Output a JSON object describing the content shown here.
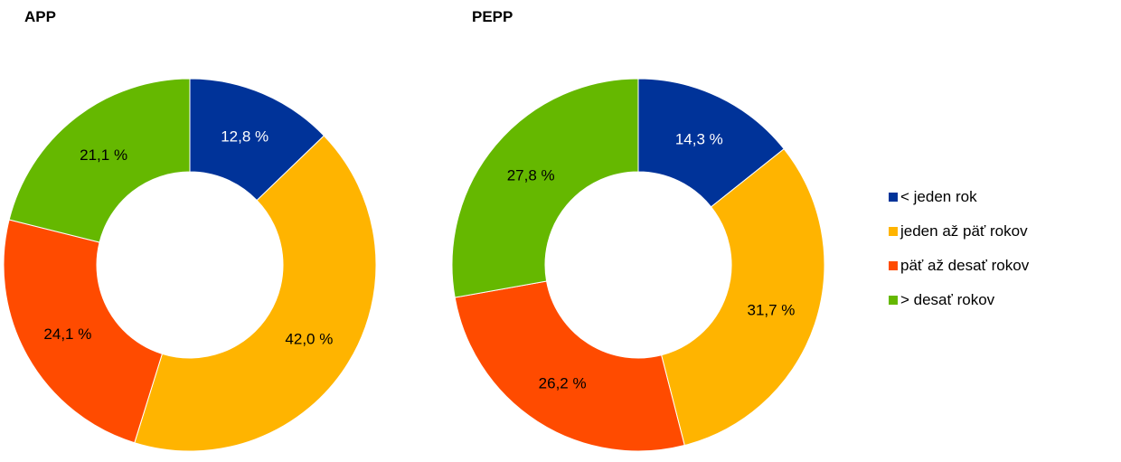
{
  "chart_data": [
    {
      "type": "pie",
      "donut": true,
      "title": "APP",
      "categories": [
        "< jeden rok",
        "jeden až päť rokov",
        "päť až desať rokov",
        "> desať rokov"
      ],
      "values": [
        12.8,
        42.0,
        24.1,
        21.1
      ],
      "labels": [
        "12,8 %",
        "42,0 %",
        "24,1 %",
        "21,1 %"
      ]
    },
    {
      "type": "pie",
      "donut": true,
      "title": "PEPP",
      "categories": [
        "< jeden rok",
        "jeden až päť rokov",
        "päť až desať rokov",
        "> desať rokov"
      ],
      "values": [
        14.3,
        31.7,
        26.2,
        27.8
      ],
      "labels": [
        "14,3 %",
        "31,7 %",
        "26,2 %",
        "27,8 %"
      ]
    }
  ],
  "legend": {
    "placement": "right",
    "items": [
      "< jeden rok",
      "jeden až päť rokov",
      "päť až desať rokov",
      "> desať rokov"
    ]
  },
  "colors": [
    "#003399",
    "#FFB400",
    "#FF4B00",
    "#65B800"
  ],
  "label_colors": [
    "#ffffff",
    "#000000",
    "#000000",
    "#000000"
  ]
}
